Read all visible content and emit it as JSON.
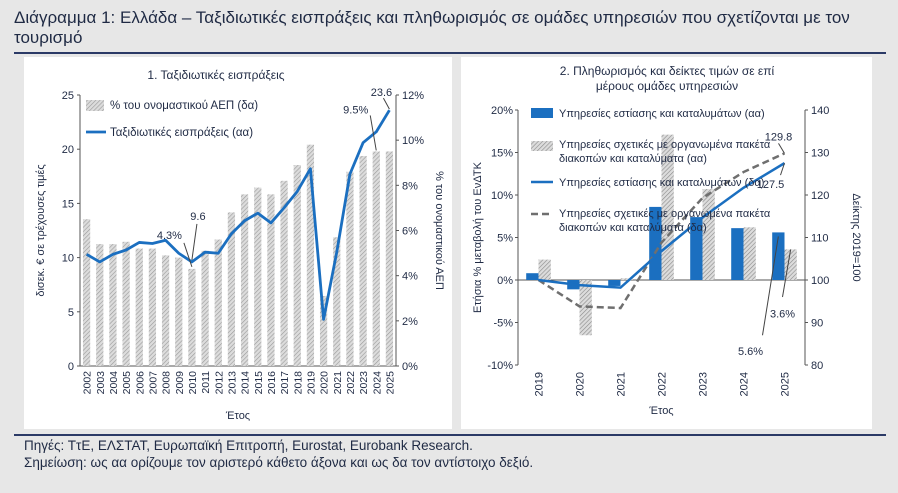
{
  "title": "Διάγραμμα 1: Ελλάδα – Ταξιδιωτικές εισπράξεις και πληθωρισμός σε ομάδες υπηρεσιών που σχετίζονται με τον τουρισμό",
  "notes": {
    "sources": "Πηγές: ΤτΕ, ΕΛΣΤΑΤ, Ευρωπαϊκή Επιτροπή, Eurostat, Eurobank Research.",
    "remark": "Σημείωση: ως αα ορίζουμε τον αριστερό κάθετο άξονα και ως δα τον αντίστοιχο δεξιό."
  },
  "colors": {
    "blue": "#1b6fc0",
    "bar_grey": "#b8b8b8",
    "dash_grey": "#6f6f6f",
    "text": "#1f2a44"
  },
  "chart_data": [
    {
      "type": "bar",
      "title": "1. Ταξιδιωτικές εισπράξεις",
      "xlabel": "Έτος",
      "ylabel_left": "δισεκ. € σε τρέχουσες τιμές",
      "ylabel_right": "% του ονομαστικού ΑΕΠ",
      "ylim_left": [
        0,
        25
      ],
      "ylim_right": [
        0,
        12
      ],
      "yticks_left": [
        "0",
        "5",
        "10",
        "15",
        "20",
        "25"
      ],
      "yticks_right": [
        "0%",
        "2%",
        "4%",
        "6%",
        "8%",
        "10%",
        "12%"
      ],
      "categories": [
        "2002",
        "2003",
        "2004",
        "2005",
        "2006",
        "2007",
        "2008",
        "2009",
        "2010",
        "2011",
        "2012",
        "2013",
        "2014",
        "2015",
        "2016",
        "2017",
        "2018",
        "2019",
        "2020",
        "2021",
        "2022",
        "2023",
        "2024",
        "2025"
      ],
      "series": [
        {
          "name": "% του ονομαστικού ΑΕΠ (δα)",
          "kind": "bar",
          "axis": "right",
          "values": [
            6.5,
            5.4,
            5.4,
            5.5,
            5.2,
            5.2,
            4.9,
            4.8,
            4.3,
            5.1,
            5.6,
            6.8,
            7.6,
            7.9,
            7.6,
            8.2,
            8.9,
            9.8,
            3.1,
            5.7,
            8.6,
            9.3,
            9.5,
            9.5
          ]
        },
        {
          "name": "Ταξιδιωτικές εισπράξεις (αα)",
          "kind": "line",
          "axis": "left",
          "values": [
            10.3,
            9.6,
            10.3,
            10.7,
            11.4,
            11.3,
            11.6,
            10.4,
            9.6,
            10.5,
            10.4,
            12.2,
            13.4,
            14.1,
            13.2,
            14.6,
            16.1,
            18.2,
            4.3,
            10.5,
            17.7,
            20.6,
            21.6,
            23.6
          ]
        }
      ],
      "annotations": [
        {
          "text": "4.3%",
          "category": "2010",
          "series": "% του ονομαστικού ΑΕΠ (δα)"
        },
        {
          "text": "9.6",
          "category": "2010",
          "series": "Ταξιδιωτικές εισπράξεις (αα)"
        },
        {
          "text": "9.5%",
          "category": "2024",
          "series": "% του ονομαστικού ΑΕΠ (δα)"
        },
        {
          "text": "23.6",
          "category": "2025",
          "series": "Ταξιδιωτικές εισπράξεις (αα)"
        }
      ],
      "legend": "top-left",
      "grid": false
    },
    {
      "type": "bar",
      "title": "2. Πληθωρισμός και δείκτες τιμών σε επί μέρους ομάδες υπηρεσιών",
      "xlabel": "Έτος",
      "ylabel_left": "Ετήσια % μεταβολή του ΕνΔΤΚ",
      "ylabel_right": "Δείκτης 2019=100",
      "ylim_left": [
        -10,
        20
      ],
      "ylim_right": [
        80,
        140
      ],
      "yticks_left": [
        "-10%",
        "-5%",
        "0%",
        "5%",
        "10%",
        "15%",
        "20%"
      ],
      "yticks_right": [
        "80",
        "90",
        "100",
        "110",
        "120",
        "130",
        "140"
      ],
      "categories": [
        "2019",
        "2020",
        "2021",
        "2022",
        "2023",
        "2024",
        "2025"
      ],
      "series": [
        {
          "name": "Υπηρεσίες εστίασης και καταλυμάτων (αα)",
          "kind": "bar",
          "axis": "left",
          "style": "solid",
          "values": [
            0.8,
            -1.1,
            -0.7,
            8.6,
            7.4,
            6.1,
            5.6
          ]
        },
        {
          "name": "Υπηρεσίες σχετικές με οργανωμένα πακέτα διακοπών και καταλύματα (αα)",
          "kind": "bar",
          "axis": "left",
          "style": "hatched",
          "values": [
            2.4,
            -6.5,
            0.2,
            17.1,
            10.7,
            6.2,
            3.6
          ]
        },
        {
          "name": "Υπηρεσίες εστίασης και καταλυμάτων (δα)",
          "kind": "line",
          "axis": "right",
          "style": "solid",
          "values": [
            100,
            98.8,
            98.2,
            106.8,
            114.7,
            121.7,
            127.5
          ]
        },
        {
          "name": "Υπηρεσίες σχετικές με οργανωμένα πακέτα διακοπών και καταλύματα (δα)",
          "kind": "line",
          "axis": "right",
          "style": "dashed",
          "values": [
            100,
            93.8,
            93.4,
            108.8,
            119.3,
            125.4,
            129.8
          ]
        }
      ],
      "annotations": [
        {
          "text": "129.8",
          "category": "2025",
          "series": "Υπηρεσίες σχετικές με οργανωμένα πακέτα διακοπών και καταλύματα (δα)"
        },
        {
          "text": "127.5",
          "category": "2025",
          "series": "Υπηρεσίες εστίασης και καταλυμάτων (δα)"
        },
        {
          "text": "5.6%",
          "category": "2025",
          "series": "Υπηρεσίες εστίασης και καταλυμάτων (αα)"
        },
        {
          "text": "3.6%",
          "category": "2025",
          "series": "Υπηρεσίες σχετικές με οργανωμένα πακέτα διακοπών και καταλύματα (αα)"
        }
      ],
      "legend": "top-left",
      "grid": false
    }
  ]
}
